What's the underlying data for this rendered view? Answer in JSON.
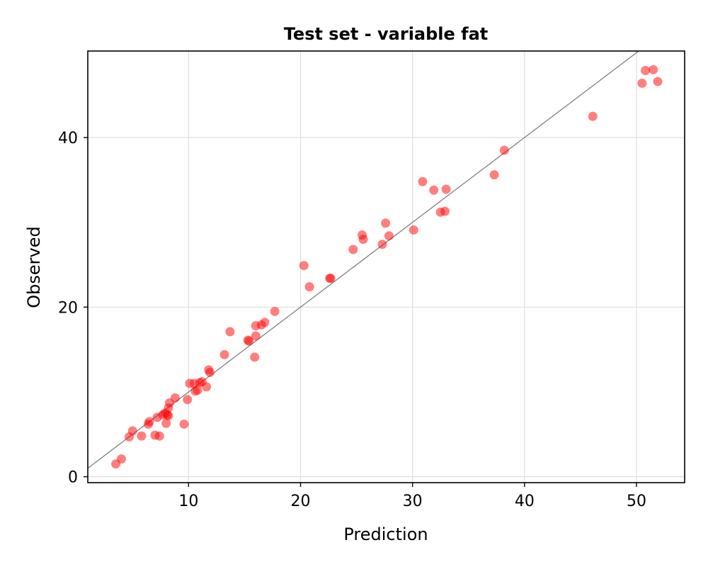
{
  "chart_data": {
    "type": "scatter",
    "title": "Test set - variable fat",
    "xlabel": "Prediction",
    "ylabel": "Observed",
    "xlim": [
      1.0,
      54.3
    ],
    "ylim": [
      -0.7,
      50.2
    ],
    "xticks": [
      10,
      20,
      30,
      40,
      50
    ],
    "yticks": [
      0,
      20,
      40
    ],
    "grid": true,
    "reference_line": "y = x",
    "point_color": "#ff0000",
    "line_color": "#808080",
    "series": [
      {
        "x": [
          3.5,
          4.0,
          4.7,
          5.0,
          5.8,
          6.4,
          6.5,
          7.0,
          7.2,
          7.4,
          7.7,
          7.9,
          8.0,
          8.1,
          8.2,
          8.2,
          8.3,
          8.8,
          9.6,
          9.9,
          10.1,
          10.5,
          10.6,
          10.8,
          11.0,
          11.2,
          11.6,
          11.8,
          11.9,
          13.2,
          13.7,
          15.3,
          15.4,
          15.9,
          16.0,
          16.0,
          16.5,
          16.8,
          17.7,
          20.3,
          20.8,
          22.6,
          22.7,
          24.7,
          25.5,
          25.6,
          27.3,
          27.6,
          27.9,
          30.1,
          30.9,
          31.9,
          32.5,
          32.9,
          33.0,
          37.3,
          38.2,
          46.1,
          50.5,
          50.8,
          51.5,
          51.9
        ],
        "y": [
          1.5,
          2.1,
          4.7,
          5.4,
          4.8,
          6.2,
          6.5,
          4.9,
          7.0,
          4.8,
          7.3,
          7.5,
          6.3,
          7.3,
          7.2,
          8.1,
          8.7,
          9.3,
          6.2,
          9.1,
          11.0,
          11.0,
          10.1,
          10.2,
          11.1,
          11.2,
          10.6,
          12.6,
          12.3,
          14.4,
          17.1,
          16.1,
          16.0,
          14.1,
          16.6,
          17.8,
          17.9,
          18.2,
          19.5,
          24.9,
          22.4,
          23.4,
          23.4,
          26.8,
          28.5,
          28.0,
          27.4,
          29.9,
          28.4,
          29.1,
          34.8,
          33.8,
          31.2,
          31.3,
          33.9,
          35.6,
          38.5,
          42.5,
          46.4,
          47.9,
          48.0,
          46.6
        ]
      }
    ]
  }
}
